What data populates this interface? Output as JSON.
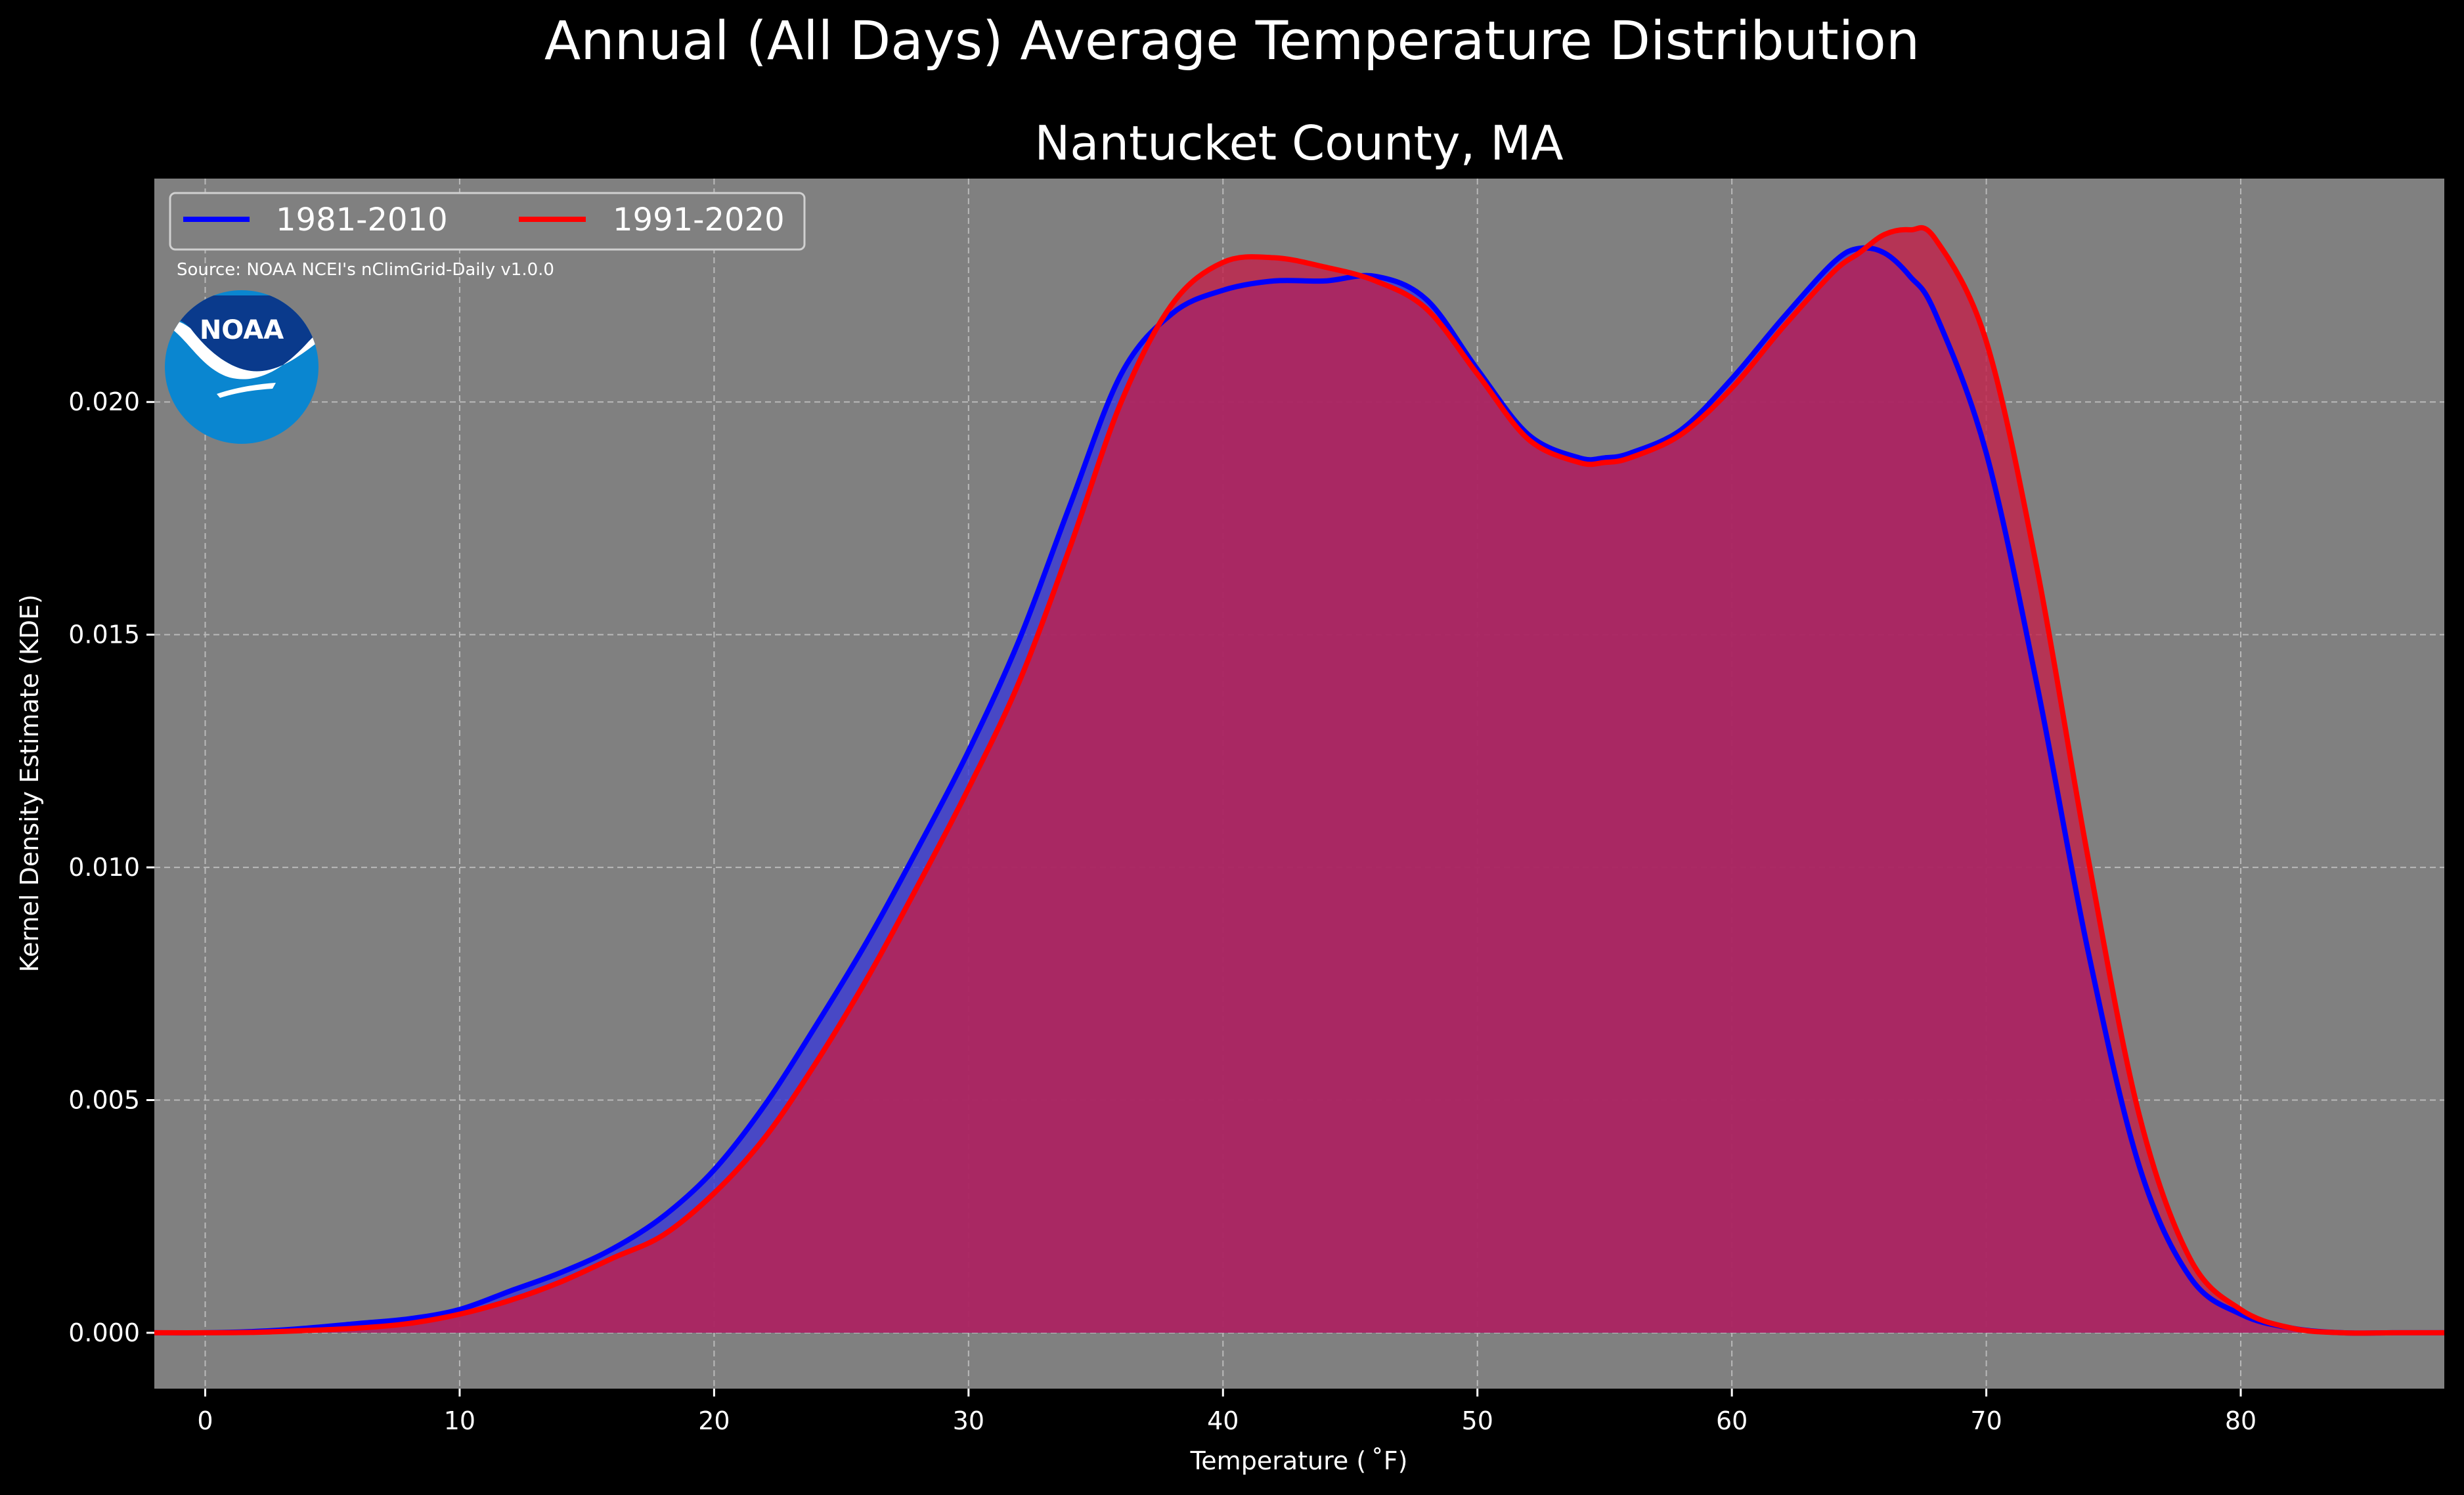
{
  "chart_data": {
    "type": "area",
    "title": "Annual (All Days) Average Temperature Distribution",
    "subtitle": "Nantucket County, MA",
    "xlabel": "Temperature ($^\\circ$F)",
    "xlabel_display": "Temperature ( ˚F)",
    "ylabel": "Kernel Density Estimate (KDE)",
    "xlim": [
      -2,
      88
    ],
    "ylim": [
      -0.0012,
      0.0248
    ],
    "x_ticks": [
      0,
      10,
      20,
      30,
      40,
      50,
      60,
      70,
      80
    ],
    "y_ticks": [
      0.0,
      0.005,
      0.01,
      0.015,
      0.02
    ],
    "y_tick_labels": [
      "0.000",
      "0.005",
      "0.010",
      "0.015",
      "0.020"
    ],
    "grid": true,
    "legend_placement": "top-left",
    "source_note": "Source: NOAA NCEI's nClimGrid-Daily v1.0.0",
    "logo_text": "NOAA",
    "x": [
      -2,
      0,
      2,
      4,
      6,
      8,
      10,
      12,
      14,
      16,
      18,
      20,
      22,
      24,
      26,
      28,
      30,
      32,
      34,
      36,
      38,
      40,
      42,
      44,
      46,
      48,
      50,
      52,
      54,
      55,
      56,
      58,
      60,
      62,
      64,
      65,
      66,
      67,
      68,
      70,
      72,
      74,
      76,
      78,
      80,
      82,
      84,
      86,
      88
    ],
    "series": [
      {
        "name": "1981-2010",
        "color": "#0000ff",
        "fill": "#3a3ad6",
        "values": [
          0.0,
          0.0,
          3e-05,
          0.0001,
          0.0002,
          0.0003,
          0.0005,
          0.0009,
          0.0013,
          0.0018,
          0.0025,
          0.0035,
          0.0049,
          0.0066,
          0.0084,
          0.0104,
          0.0125,
          0.0149,
          0.0178,
          0.0206,
          0.0219,
          0.0224,
          0.0226,
          0.0226,
          0.0227,
          0.0222,
          0.0207,
          0.0193,
          0.0188,
          0.0188,
          0.0189,
          0.0194,
          0.0205,
          0.0218,
          0.023,
          0.0233,
          0.0232,
          0.0227,
          0.0219,
          0.0189,
          0.0139,
          0.0082,
          0.0036,
          0.0012,
          0.0004,
          0.0001,
          0.0,
          0.0,
          0.0
        ]
      },
      {
        "name": "1991-2020",
        "color": "#ff0000",
        "fill": "#c2204a",
        "values": [
          0.0,
          0.0,
          1e-05,
          5e-05,
          0.0001,
          0.0002,
          0.0004,
          0.0007,
          0.0011,
          0.0016,
          0.0021,
          0.003,
          0.0042,
          0.0058,
          0.0076,
          0.0096,
          0.0117,
          0.014,
          0.0169,
          0.02,
          0.0221,
          0.023,
          0.0231,
          0.0229,
          0.0226,
          0.022,
          0.0206,
          0.0192,
          0.0187,
          0.0187,
          0.0188,
          0.0193,
          0.0203,
          0.0216,
          0.0228,
          0.0232,
          0.0236,
          0.0237,
          0.0235,
          0.0213,
          0.0164,
          0.0102,
          0.0047,
          0.0016,
          0.0005,
          0.0001,
          0.0,
          0.0,
          0.0
        ]
      }
    ]
  }
}
